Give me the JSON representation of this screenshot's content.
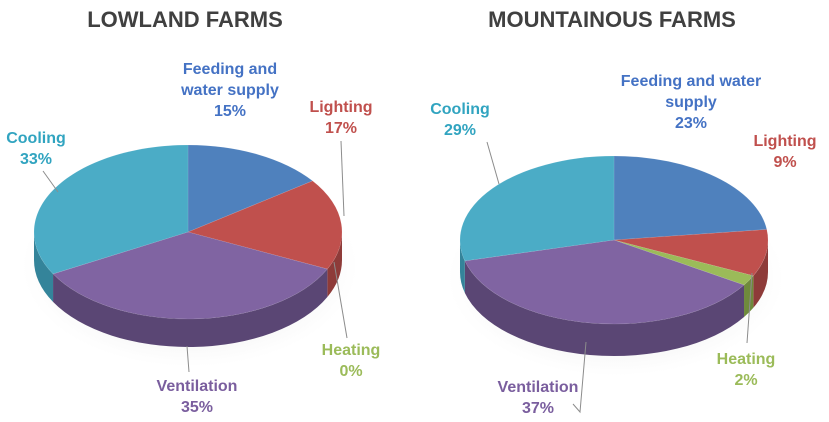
{
  "chart_data": [
    {
      "type": "pie",
      "title": "LOWLAND FARMS",
      "slices": [
        {
          "label": "Feeding and water supply",
          "label_lines": [
            "Feeding and",
            "water supply"
          ],
          "value": 15,
          "value_text": "15%",
          "color": "#4F81BD",
          "side_color": "#3A5F8F",
          "label_color": "#4472C4"
        },
        {
          "label": "Lighting",
          "label_lines": [
            "Lighting"
          ],
          "value": 17,
          "value_text": "17%",
          "color": "#C0504D",
          "side_color": "#8E3B39",
          "label_color": "#C0504D"
        },
        {
          "label": "Heating",
          "label_lines": [
            "Heating"
          ],
          "value": 0,
          "value_text": "0%",
          "color": "#9BBB59",
          "side_color": "#6F8A3C",
          "label_color": "#9BBB59"
        },
        {
          "label": "Ventilation",
          "label_lines": [
            "Ventilation"
          ],
          "value": 35,
          "value_text": "35%",
          "color": "#8064A2",
          "side_color": "#5A4674",
          "label_color": "#7A5E9E"
        },
        {
          "label": "Cooling",
          "label_lines": [
            "Cooling"
          ],
          "value": 33,
          "value_text": "33%",
          "color": "#4BACC6",
          "side_color": "#34849A",
          "label_color": "#31A4C0"
        }
      ]
    },
    {
      "type": "pie",
      "title": "MOUNTAINOUS FARMS",
      "slices": [
        {
          "label": "Feeding and water supply",
          "label_lines": [
            "Feeding and water",
            "supply"
          ],
          "value": 23,
          "value_text": "23%",
          "color": "#4F81BD",
          "side_color": "#3A5F8F",
          "label_color": "#4472C4"
        },
        {
          "label": "Lighting",
          "label_lines": [
            "Lighting"
          ],
          "value": 9,
          "value_text": "9%",
          "color": "#C0504D",
          "side_color": "#8E3B39",
          "label_color": "#C0504D"
        },
        {
          "label": "Heating",
          "label_lines": [
            "Heating"
          ],
          "value": 2,
          "value_text": "2%",
          "color": "#9BBB59",
          "side_color": "#6F8A3C",
          "label_color": "#9BBB59"
        },
        {
          "label": "Ventilation",
          "label_lines": [
            "Ventilation"
          ],
          "value": 37,
          "value_text": "37%",
          "color": "#8064A2",
          "side_color": "#5A4674",
          "label_color": "#7A5E9E"
        },
        {
          "label": "Cooling",
          "label_lines": [
            "Cooling"
          ],
          "value": 29,
          "value_text": "29%",
          "color": "#4BACC6",
          "side_color": "#34849A",
          "label_color": "#31A4C0"
        }
      ]
    }
  ]
}
